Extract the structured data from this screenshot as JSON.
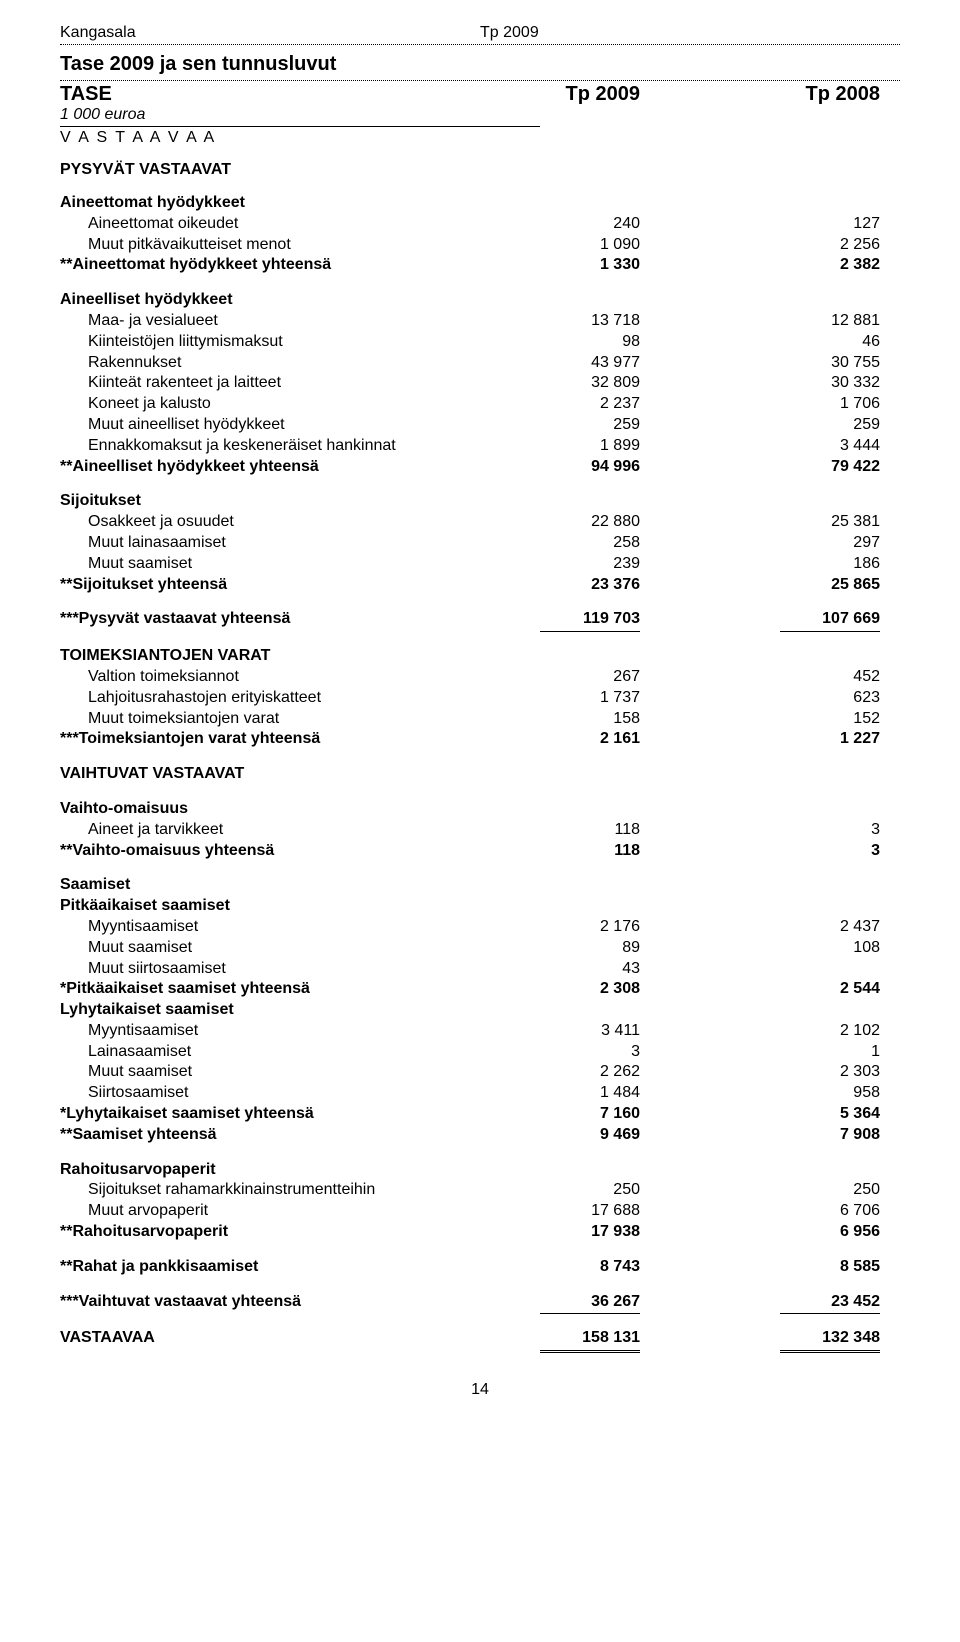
{
  "header": {
    "left": "Kangasala",
    "right": "Tp 2009"
  },
  "title": "Tase 2009 ja sen tunnusluvut",
  "tase": {
    "label": "TASE",
    "col1": "Tp 2009",
    "col2": "Tp 2008"
  },
  "subnote": "1 000 euroa",
  "vastaavaa_spaced": "V A S T A A V A A",
  "pysyvat": "PYSYVÄT VASTAAVAT",
  "aineettomat": {
    "head": "Aineettomat hyödykkeet",
    "rows": [
      {
        "label": "Aineettomat oikeudet",
        "c1": "240",
        "c2": "127"
      },
      {
        "label": "Muut pitkävaikutteiset menot",
        "c1": "1 090",
        "c2": "2 256"
      }
    ],
    "total": {
      "label": "**Aineettomat hyödykkeet yhteensä",
      "c1": "1 330",
      "c2": "2 382"
    }
  },
  "aineelliset": {
    "head": "Aineelliset hyödykkeet",
    "rows": [
      {
        "label": "Maa- ja vesialueet",
        "c1": "13 718",
        "c2": "12 881"
      },
      {
        "label": "Kiinteistöjen liittymismaksut",
        "c1": "98",
        "c2": "46"
      },
      {
        "label": "Rakennukset",
        "c1": "43 977",
        "c2": "30 755"
      },
      {
        "label": "Kiinteät rakenteet ja laitteet",
        "c1": "32 809",
        "c2": "30 332"
      },
      {
        "label": "Koneet ja kalusto",
        "c1": "2 237",
        "c2": "1 706"
      },
      {
        "label": "Muut aineelliset hyödykkeet",
        "c1": "259",
        "c2": "259"
      },
      {
        "label": "Ennakkomaksut ja keskeneräiset hankinnat",
        "c1": "1 899",
        "c2": "3 444"
      }
    ],
    "total": {
      "label": "**Aineelliset hyödykkeet yhteensä",
      "c1": "94 996",
      "c2": "79 422"
    }
  },
  "sijoitukset": {
    "head": "Sijoitukset",
    "rows": [
      {
        "label": "Osakkeet ja osuudet",
        "c1": "22 880",
        "c2": "25 381"
      },
      {
        "label": "Muut lainasaamiset",
        "c1": "258",
        "c2": "297"
      },
      {
        "label": "Muut saamiset",
        "c1": "239",
        "c2": "186"
      }
    ],
    "total": {
      "label": "**Sijoitukset yhteensä",
      "c1": "23 376",
      "c2": "25 865"
    }
  },
  "pysyvat_total": {
    "label": "***Pysyvät vastaavat yhteensä",
    "c1": "119 703",
    "c2": "107 669"
  },
  "toimeksi": {
    "head": "TOIMEKSIANTOJEN VARAT",
    "rows": [
      {
        "label": "Valtion toimeksiannot",
        "c1": "267",
        "c2": "452"
      },
      {
        "label": "Lahjoitusrahastojen erityiskatteet",
        "c1": "1 737",
        "c2": "623"
      },
      {
        "label": "Muut toimeksiantojen varat",
        "c1": "158",
        "c2": "152"
      }
    ],
    "total": {
      "label": "***Toimeksiantojen varat yhteensä",
      "c1": "2 161",
      "c2": "1 227"
    }
  },
  "vaihtuvat_head": "VAIHTUVAT VASTAAVAT",
  "vaihto": {
    "head": "Vaihto-omaisuus",
    "rows": [
      {
        "label": "Aineet ja tarvikkeet",
        "c1": "118",
        "c2": "3"
      }
    ],
    "total": {
      "label": "**Vaihto-omaisuus yhteensä",
      "c1": "118",
      "c2": "3"
    }
  },
  "saamiset": {
    "head": "Saamiset",
    "pitka_head": "Pitkäaikaiset saamiset",
    "pitka_rows": [
      {
        "label": "Myyntisaamiset",
        "c1": "2 176",
        "c2": "2 437"
      },
      {
        "label": "Muut saamiset",
        "c1": "89",
        "c2": "108"
      },
      {
        "label": "Muut siirtosaamiset",
        "c1": "43",
        "c2": ""
      }
    ],
    "pitka_total": {
      "label": "*Pitkäaikaiset saamiset yhteensä",
      "c1": "2 308",
      "c2": "2 544"
    },
    "lyhyt_head": "Lyhytaikaiset saamiset",
    "lyhyt_rows": [
      {
        "label": "Myyntisaamiset",
        "c1": "3 411",
        "c2": "2 102"
      },
      {
        "label": "Lainasaamiset",
        "c1": "3",
        "c2": "1"
      },
      {
        "label": "Muut saamiset",
        "c1": "2 262",
        "c2": "2 303"
      },
      {
        "label": "Siirtosaamiset",
        "c1": "1 484",
        "c2": "958"
      }
    ],
    "lyhyt_total": {
      "label": "*Lyhytaikaiset saamiset yhteensä",
      "c1": "7 160",
      "c2": "5 364"
    },
    "total": {
      "label": "**Saamiset yhteensä",
      "c1": "9 469",
      "c2": "7 908"
    }
  },
  "rahoitus": {
    "head": "Rahoitusarvopaperit",
    "rows": [
      {
        "label": "Sijoitukset rahamarkkinainstrumentteihin",
        "c1": "250",
        "c2": "250"
      },
      {
        "label": "Muut arvopaperit",
        "c1": "17 688",
        "c2": "6 706"
      }
    ],
    "total": {
      "label": "**Rahoitusarvopaperit",
      "c1": "17 938",
      "c2": "6 956"
    }
  },
  "rahat": {
    "label": "**Rahat ja pankkisaamiset",
    "c1": "8 743",
    "c2": "8 585"
  },
  "vaihtuvat_total": {
    "label": "***Vaihtuvat vastaavat yhteensä",
    "c1": "36 267",
    "c2": "23 452"
  },
  "grand": {
    "label": "VASTAAVAA",
    "c1": "158 131",
    "c2": "132 348"
  },
  "page": "14"
}
